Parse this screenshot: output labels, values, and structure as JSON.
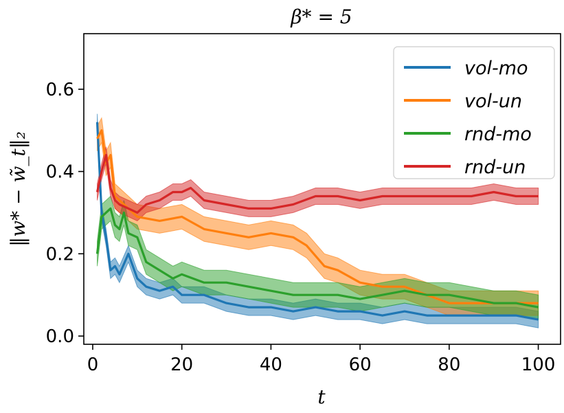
{
  "chart_data": {
    "type": "line",
    "title": "β* = 5",
    "xlabel": "t",
    "ylabel": "‖w* − w̃_t‖₂",
    "xlim": [
      -2,
      105
    ],
    "ylim": [
      -0.02,
      0.735
    ],
    "xticks": [
      0,
      20,
      40,
      60,
      80,
      100
    ],
    "yticks": [
      0.0,
      0.2,
      0.4,
      0.6
    ],
    "ytick_labels": [
      "0.0",
      "0.2",
      "0.4",
      "0.6"
    ],
    "legend_position": "top-right",
    "series": [
      {
        "name": "vol-mo",
        "color": "#1f77b4",
        "x": [
          1,
          2,
          3,
          4,
          5,
          6,
          8,
          10,
          12,
          15,
          18,
          20,
          25,
          30,
          35,
          40,
          45,
          50,
          55,
          60,
          65,
          70,
          75,
          80,
          85,
          90,
          95,
          100
        ],
        "y": [
          0.52,
          0.3,
          0.24,
          0.16,
          0.17,
          0.15,
          0.2,
          0.14,
          0.12,
          0.11,
          0.12,
          0.1,
          0.1,
          0.08,
          0.07,
          0.07,
          0.06,
          0.07,
          0.06,
          0.06,
          0.05,
          0.06,
          0.05,
          0.05,
          0.05,
          0.05,
          0.05,
          0.04
        ],
        "spread": 0.02
      },
      {
        "name": "vol-un",
        "color": "#ff7f0e",
        "x": [
          1,
          2,
          3,
          4,
          5,
          6,
          8,
          10,
          15,
          20,
          25,
          30,
          35,
          40,
          45,
          48,
          52,
          55,
          60,
          65,
          70,
          75,
          80,
          85,
          90,
          95,
          100
        ],
        "y": [
          0.48,
          0.5,
          0.42,
          0.44,
          0.34,
          0.33,
          0.31,
          0.29,
          0.28,
          0.29,
          0.26,
          0.25,
          0.24,
          0.25,
          0.24,
          0.22,
          0.17,
          0.16,
          0.13,
          0.12,
          0.12,
          0.1,
          0.08,
          0.08,
          0.08,
          0.08,
          0.08
        ],
        "spread": 0.03
      },
      {
        "name": "rnd-mo",
        "color": "#2ca02c",
        "x": [
          1,
          2,
          3,
          4,
          5,
          6,
          7,
          8,
          10,
          12,
          15,
          18,
          20,
          25,
          30,
          35,
          40,
          45,
          50,
          55,
          60,
          65,
          70,
          75,
          80,
          85,
          90,
          95,
          100
        ],
        "y": [
          0.2,
          0.29,
          0.3,
          0.31,
          0.27,
          0.26,
          0.3,
          0.25,
          0.24,
          0.18,
          0.16,
          0.14,
          0.15,
          0.13,
          0.13,
          0.12,
          0.11,
          0.1,
          0.1,
          0.1,
          0.09,
          0.1,
          0.11,
          0.1,
          0.1,
          0.09,
          0.08,
          0.08,
          0.07
        ],
        "spread": 0.03
      },
      {
        "name": "rnd-un",
        "color": "#d62728",
        "x": [
          1,
          2,
          3,
          4,
          5,
          6,
          8,
          10,
          12,
          15,
          18,
          20,
          22,
          25,
          30,
          35,
          40,
          45,
          50,
          55,
          60,
          65,
          70,
          75,
          80,
          85,
          90,
          95,
          100
        ],
        "y": [
          0.35,
          0.4,
          0.44,
          0.36,
          0.33,
          0.32,
          0.31,
          0.3,
          0.32,
          0.33,
          0.35,
          0.35,
          0.36,
          0.33,
          0.32,
          0.31,
          0.31,
          0.32,
          0.34,
          0.34,
          0.33,
          0.34,
          0.34,
          0.34,
          0.34,
          0.34,
          0.35,
          0.34,
          0.34
        ],
        "spread": 0.02
      }
    ]
  }
}
